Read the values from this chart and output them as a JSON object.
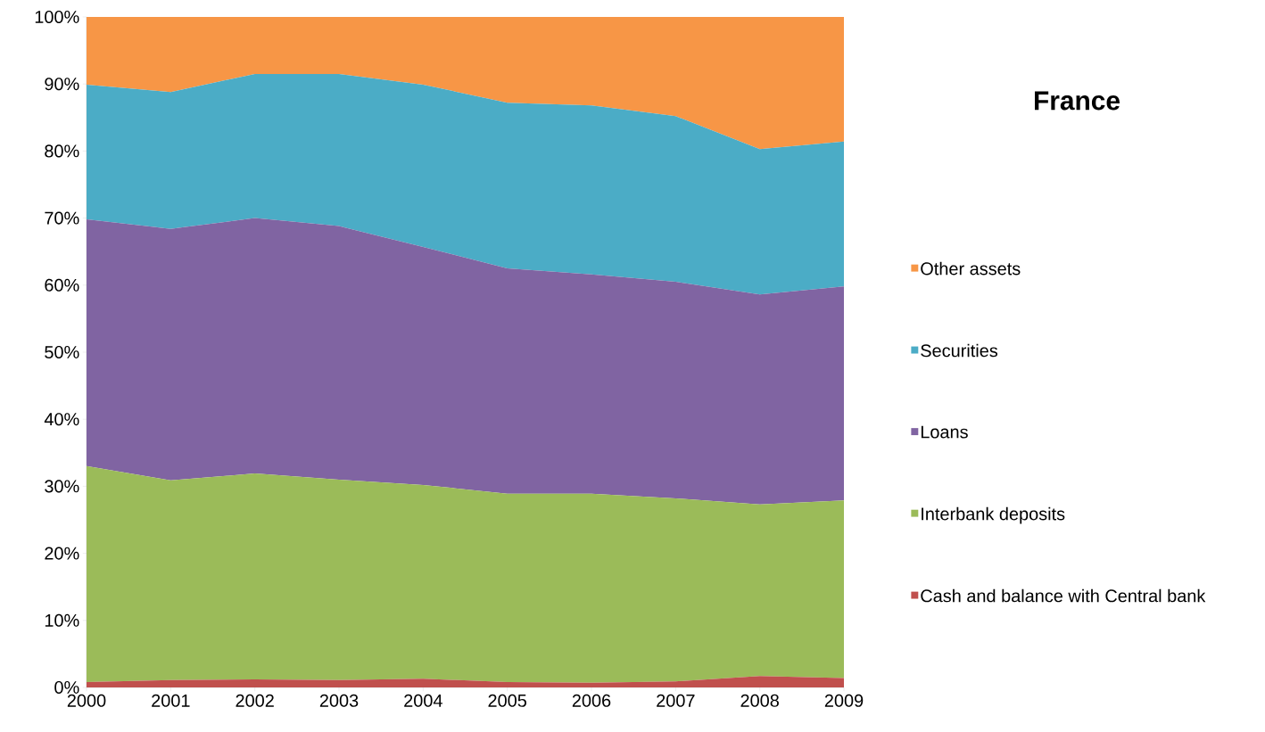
{
  "chart_data": {
    "type": "area",
    "stacked": true,
    "title": "France",
    "x": [
      2000,
      2001,
      2002,
      2003,
      2004,
      2005,
      2006,
      2007,
      2008,
      2009
    ],
    "series": [
      {
        "name": "Cash and balance with Central bank",
        "color": "#c0504d",
        "values": [
          0.8,
          1.1,
          1.2,
          1.1,
          1.3,
          0.8,
          0.7,
          0.9,
          1.7,
          1.4
        ]
      },
      {
        "name": "Interbank deposits",
        "color": "#9bbb59",
        "values": [
          32.2,
          29.8,
          30.7,
          29.9,
          28.9,
          28.1,
          28.2,
          27.3,
          25.6,
          26.5
        ]
      },
      {
        "name": "Loans",
        "color": "#8064a2",
        "values": [
          36.8,
          37.5,
          38.1,
          37.8,
          35.5,
          33.6,
          32.7,
          32.3,
          31.3,
          31.9
        ]
      },
      {
        "name": "Securities",
        "color": "#4bacc6",
        "values": [
          20.1,
          20.4,
          21.5,
          22.7,
          24.2,
          24.7,
          25.2,
          24.7,
          21.7,
          21.6
        ]
      },
      {
        "name": "Other assets",
        "color": "#f79646",
        "values": [
          10.1,
          11.2,
          8.5,
          8.5,
          10.1,
          12.8,
          13.2,
          14.8,
          19.7,
          18.6
        ]
      }
    ],
    "xlim": [
      2000,
      2009
    ],
    "xticks": [
      2000,
      2001,
      2002,
      2003,
      2004,
      2005,
      2006,
      2007,
      2008,
      2009
    ],
    "ylim": [
      0,
      100
    ],
    "yticks": [
      {
        "value": 0,
        "label": "0%"
      },
      {
        "value": 10,
        "label": "10%"
      },
      {
        "value": 20,
        "label": "20%"
      },
      {
        "value": 30,
        "label": "30%"
      },
      {
        "value": 40,
        "label": "40%"
      },
      {
        "value": 50,
        "label": "50%"
      },
      {
        "value": 60,
        "label": "60%"
      },
      {
        "value": 70,
        "label": "70%"
      },
      {
        "value": 80,
        "label": "80%"
      },
      {
        "value": 90,
        "label": "90%"
      },
      {
        "value": 100,
        "label": "100%"
      }
    ],
    "legend": "right",
    "grid": false
  }
}
